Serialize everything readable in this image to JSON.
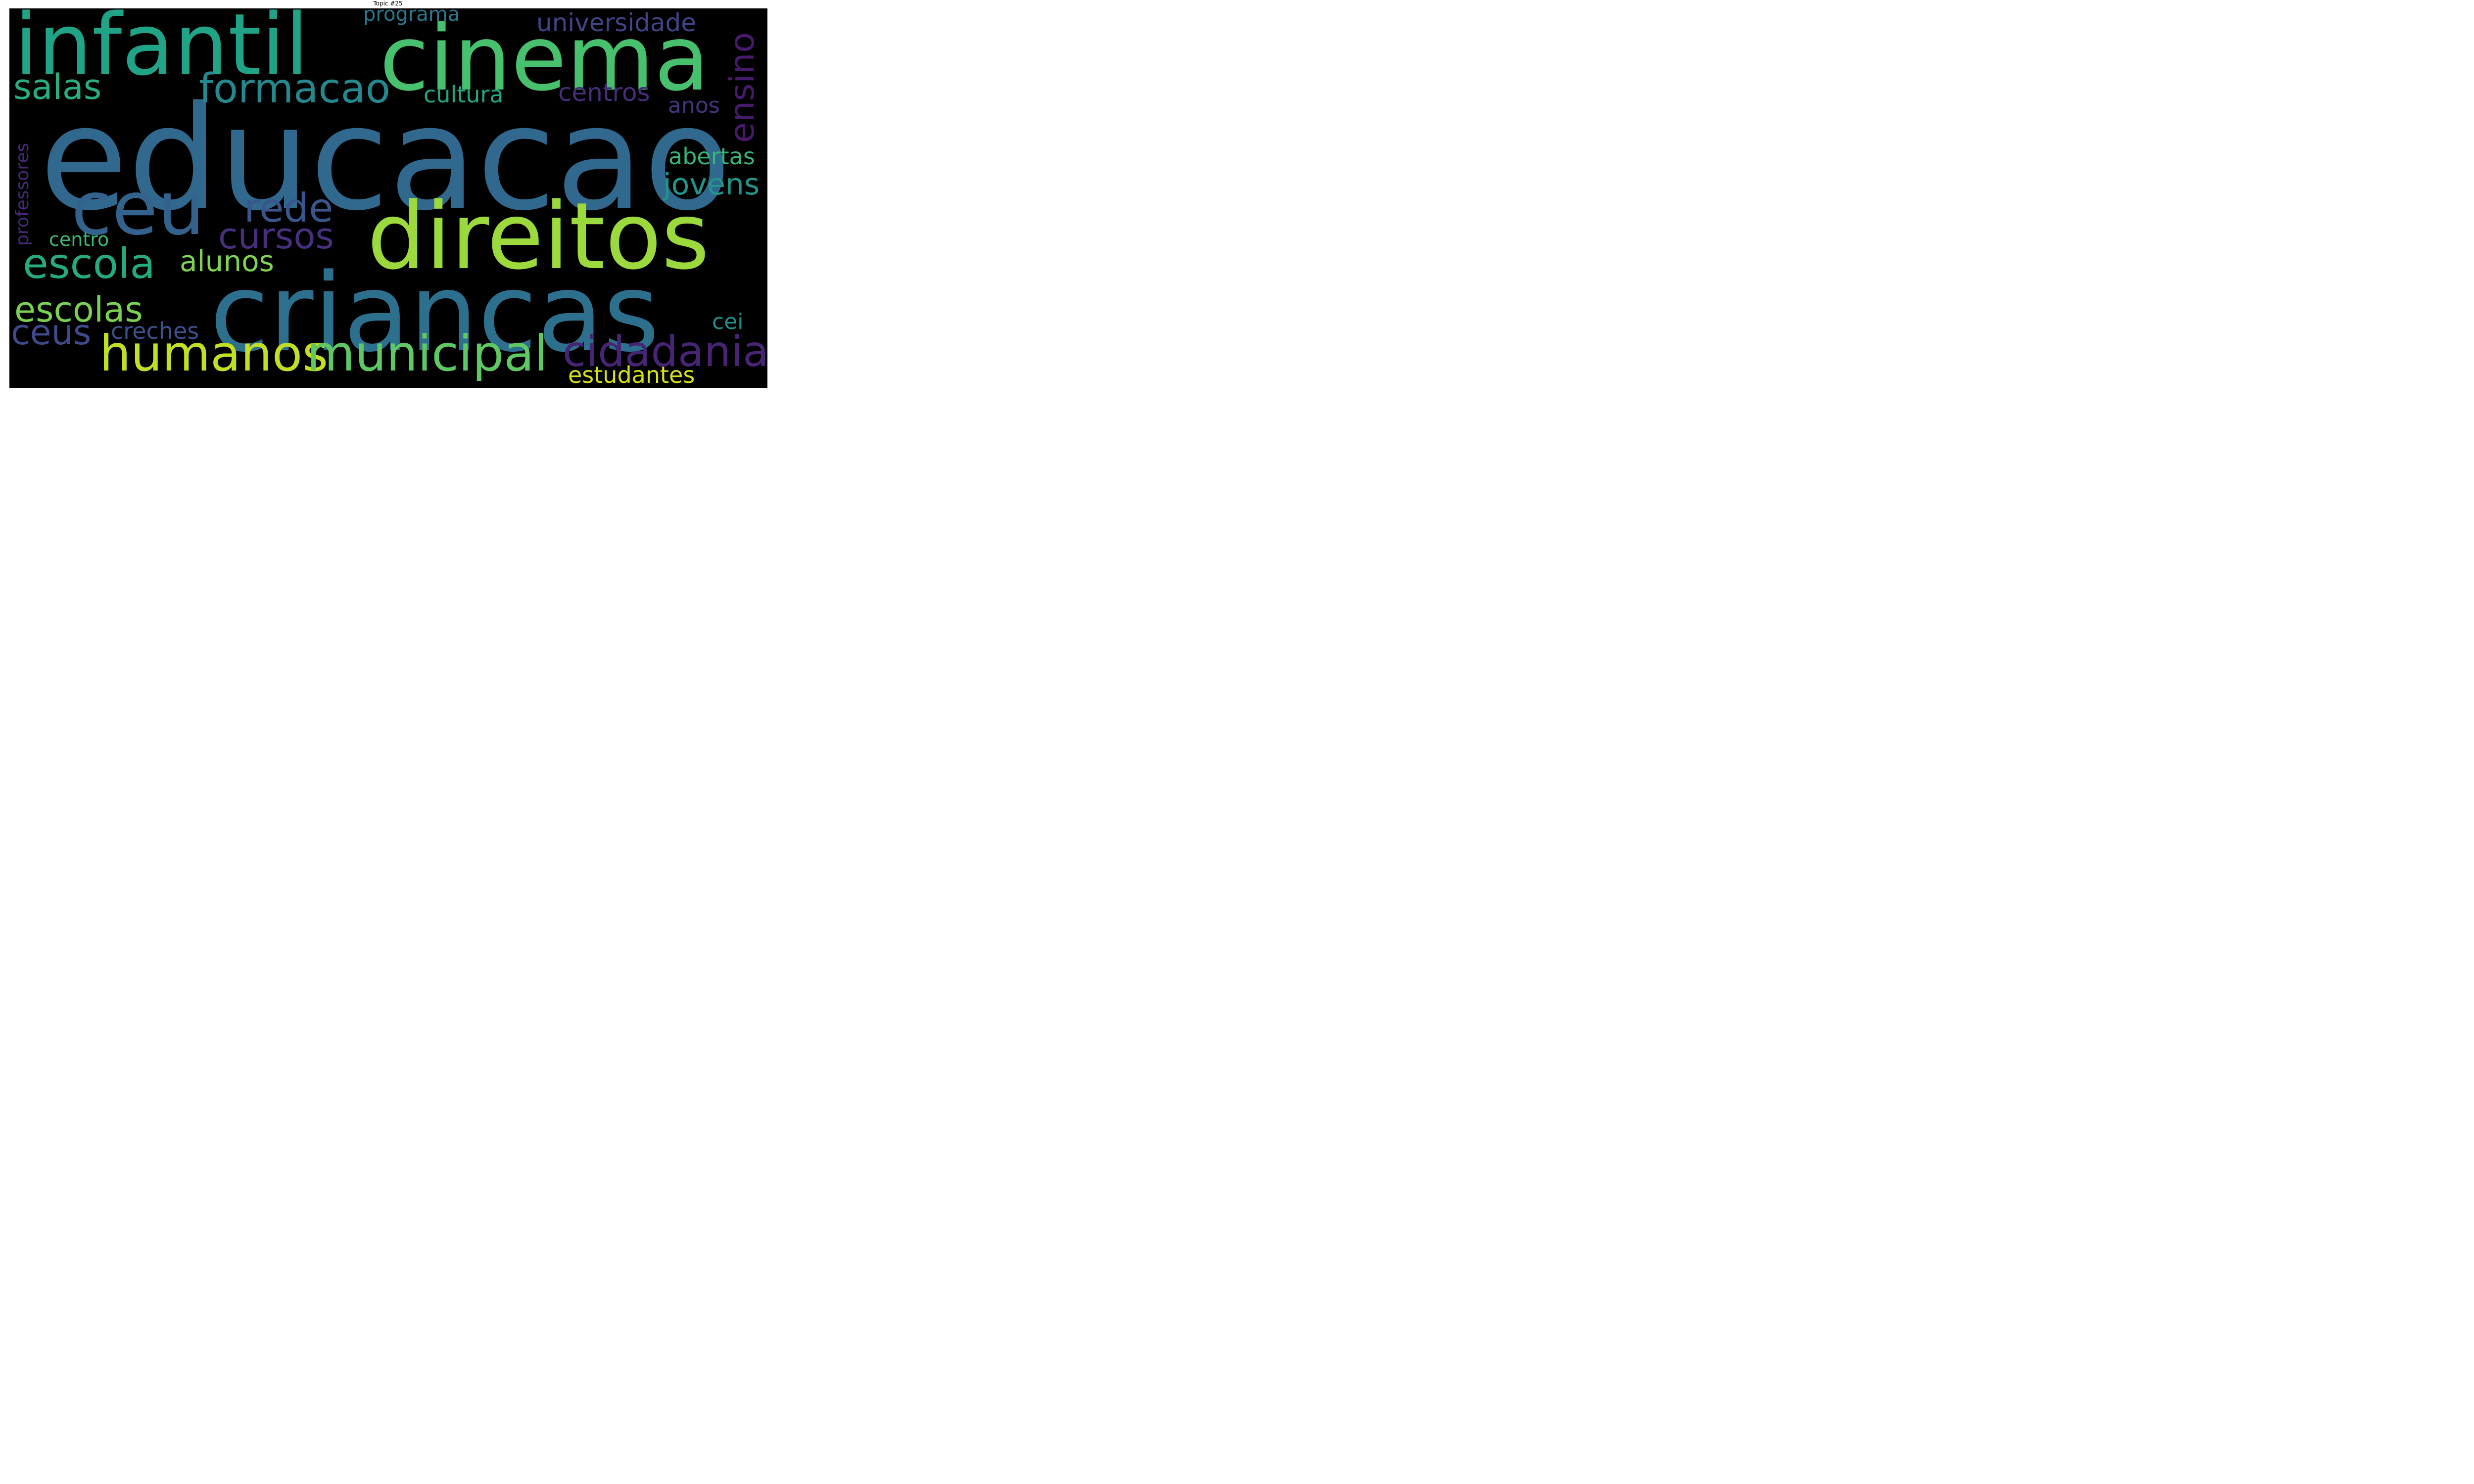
{
  "title": "Topic #25",
  "words": [
    {
      "text": "educacao",
      "color": "#31688e"
    },
    {
      "text": "criancas",
      "color": "#2d708e"
    },
    {
      "text": "direitos",
      "color": "#9bd93c"
    },
    {
      "text": "cinema",
      "color": "#48c16e"
    },
    {
      "text": "infantil",
      "color": "#20a386"
    },
    {
      "text": "ceu",
      "color": "#33638d"
    },
    {
      "text": "humanos",
      "color": "#c2df23"
    },
    {
      "text": "municipal",
      "color": "#5ec962"
    },
    {
      "text": "cidadania",
      "color": "#482475"
    },
    {
      "text": "escola",
      "color": "#25ab82"
    },
    {
      "text": "formacao",
      "color": "#23898e"
    },
    {
      "text": "salas",
      "color": "#29af7f"
    },
    {
      "text": "rede",
      "color": "#39568c"
    },
    {
      "text": "cursos",
      "color": "#472f7d"
    },
    {
      "text": "escolas",
      "color": "#7ad151"
    },
    {
      "text": "ceus",
      "color": "#3e4a89"
    },
    {
      "text": "ensino",
      "color": "#481a6c"
    },
    {
      "text": "jovens",
      "color": "#1f968b"
    },
    {
      "text": "alunos",
      "color": "#7fd34e"
    },
    {
      "text": "universidade",
      "color": "#414487"
    },
    {
      "text": "centros",
      "color": "#472d7b"
    },
    {
      "text": "abertas",
      "color": "#35b779"
    },
    {
      "text": "cultura",
      "color": "#22a884"
    },
    {
      "text": "creches",
      "color": "#3b528b"
    },
    {
      "text": "estudantes",
      "color": "#d8e219"
    },
    {
      "text": "programa",
      "color": "#2a788e"
    },
    {
      "text": "professores",
      "color": "#482878"
    },
    {
      "text": "anos",
      "color": "#46337e"
    },
    {
      "text": "centro",
      "color": "#3bbb75"
    },
    {
      "text": "cei",
      "color": "#21918c"
    }
  ]
}
